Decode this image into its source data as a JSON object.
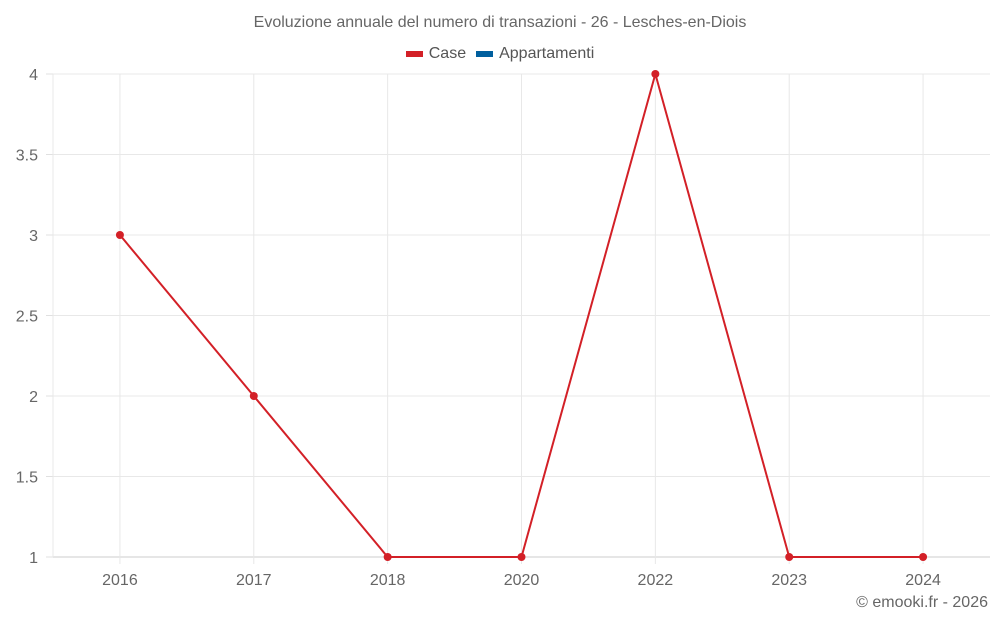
{
  "chart_data": {
    "type": "line",
    "title": "Evoluzione annuale del numero di transazioni - 26 - Lesches-en-Diois",
    "categories": [
      "2016",
      "2017",
      "2018",
      "2020",
      "2022",
      "2023",
      "2024"
    ],
    "series": [
      {
        "name": "Case",
        "color": "#d32027",
        "values": [
          3,
          2,
          1,
          1,
          4,
          1,
          1
        ]
      },
      {
        "name": "Appartamenti",
        "color": "#005f9e",
        "values": []
      }
    ],
    "xlabel": "",
    "ylabel": "",
    "ylim": [
      1,
      4
    ],
    "yticks": [
      "4",
      "3.5",
      "3",
      "2.5",
      "2",
      "1.5",
      "1"
    ],
    "grid": true,
    "legend_position": "top"
  },
  "legend": [
    {
      "label": "Case",
      "color": "#d32027"
    },
    {
      "label": "Appartamenti",
      "color": "#005f9e"
    }
  ],
  "credit": "© emooki.fr - 2026"
}
